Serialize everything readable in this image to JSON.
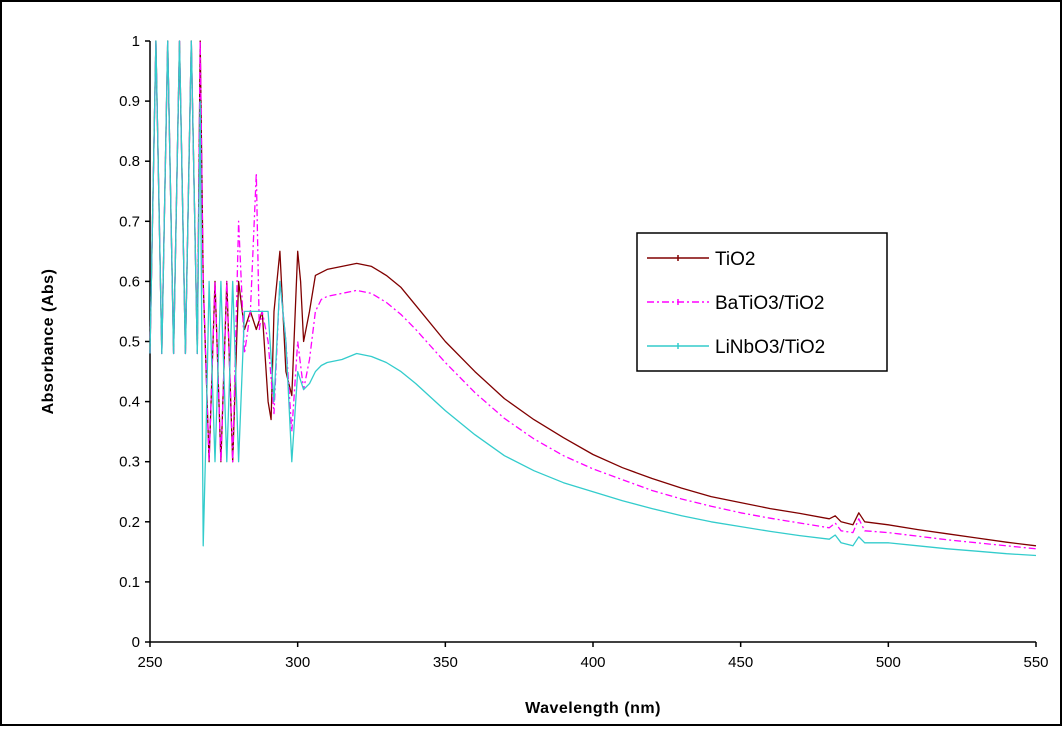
{
  "chart_data": {
    "type": "line",
    "title": "",
    "xlabel": "Wavelength (nm)",
    "ylabel": "Absorbance (Abs)",
    "xlim": [
      250,
      550
    ],
    "ylim": [
      0,
      1
    ],
    "xticks": [
      "250",
      "300",
      "350",
      "400",
      "450",
      "500",
      "550"
    ],
    "yticks": [
      "0",
      "0.1",
      "0.2",
      "0.3",
      "0.4",
      "0.5",
      "0.6",
      "0.7",
      "0.8",
      "0.9",
      "1"
    ],
    "grid": false,
    "legend_position": "right",
    "series": [
      {
        "name": "TiO2",
        "color": "#800000",
        "x": [
          250,
          252,
          254,
          256,
          258,
          260,
          262,
          264,
          266,
          267,
          268,
          270,
          272,
          274,
          276,
          278,
          280,
          282,
          284,
          286,
          288,
          290,
          291,
          292,
          294,
          296,
          298,
          300,
          301,
          302,
          304,
          306,
          308,
          310,
          315,
          320,
          325,
          330,
          335,
          340,
          350,
          360,
          370,
          380,
          390,
          400,
          410,
          420,
          430,
          440,
          450,
          460,
          470,
          480,
          482,
          484,
          488,
          490,
          492,
          500,
          510,
          520,
          530,
          540,
          550
        ],
        "y": [
          0.48,
          1.0,
          0.48,
          1.0,
          0.48,
          1.0,
          0.48,
          1.0,
          0.48,
          1.0,
          0.6,
          0.3,
          0.6,
          0.3,
          0.6,
          0.3,
          0.6,
          0.52,
          0.55,
          0.52,
          0.55,
          0.4,
          0.37,
          0.55,
          0.65,
          0.45,
          0.41,
          0.65,
          0.6,
          0.5,
          0.55,
          0.61,
          0.615,
          0.62,
          0.625,
          0.63,
          0.625,
          0.61,
          0.59,
          0.56,
          0.5,
          0.45,
          0.405,
          0.37,
          0.34,
          0.312,
          0.29,
          0.272,
          0.256,
          0.242,
          0.232,
          0.222,
          0.214,
          0.205,
          0.21,
          0.2,
          0.195,
          0.215,
          0.2,
          0.195,
          0.187,
          0.18,
          0.173,
          0.166,
          0.16
        ]
      },
      {
        "name": "BaTiO3/TiO2",
        "color": "#FF00FF",
        "x": [
          250,
          252,
          254,
          256,
          258,
          260,
          262,
          264,
          266,
          267,
          268,
          270,
          272,
          274,
          276,
          278,
          280,
          282,
          284,
          286,
          287,
          288,
          290,
          292,
          294,
          296,
          298,
          300,
          302,
          304,
          306,
          308,
          310,
          315,
          320,
          325,
          330,
          335,
          340,
          350,
          360,
          370,
          380,
          390,
          400,
          410,
          420,
          430,
          440,
          450,
          460,
          470,
          480,
          482,
          484,
          488,
          490,
          492,
          500,
          510,
          520,
          530,
          540,
          550
        ],
        "y": [
          0.48,
          1.0,
          0.48,
          1.0,
          0.48,
          1.0,
          0.48,
          1.0,
          0.48,
          1.0,
          0.6,
          0.3,
          0.6,
          0.3,
          0.6,
          0.3,
          0.7,
          0.48,
          0.55,
          0.78,
          0.52,
          0.55,
          0.5,
          0.38,
          0.6,
          0.5,
          0.35,
          0.5,
          0.42,
          0.47,
          0.55,
          0.57,
          0.575,
          0.58,
          0.585,
          0.58,
          0.565,
          0.545,
          0.52,
          0.465,
          0.415,
          0.372,
          0.338,
          0.31,
          0.288,
          0.27,
          0.252,
          0.238,
          0.226,
          0.215,
          0.206,
          0.198,
          0.19,
          0.198,
          0.185,
          0.182,
          0.205,
          0.185,
          0.182,
          0.176,
          0.17,
          0.165,
          0.16,
          0.155
        ]
      },
      {
        "name": "LiNbO3/TiO2",
        "color": "#33CCCC",
        "x": [
          250,
          252,
          254,
          256,
          258,
          260,
          262,
          264,
          266,
          267,
          268,
          269,
          270,
          272,
          274,
          276,
          278,
          280,
          282,
          284,
          286,
          288,
          290,
          292,
          294,
          296,
          298,
          300,
          302,
          304,
          306,
          308,
          310,
          315,
          320,
          325,
          330,
          335,
          340,
          350,
          360,
          370,
          380,
          390,
          400,
          410,
          420,
          430,
          440,
          450,
          460,
          470,
          480,
          482,
          484,
          488,
          490,
          492,
          500,
          510,
          520,
          530,
          540,
          550
        ],
        "y": [
          0.48,
          1.0,
          0.48,
          1.0,
          0.48,
          1.0,
          0.48,
          1.0,
          0.48,
          0.9,
          0.16,
          0.35,
          0.6,
          0.3,
          0.6,
          0.3,
          0.6,
          0.3,
          0.55,
          0.55,
          0.55,
          0.55,
          0.55,
          0.4,
          0.6,
          0.5,
          0.3,
          0.45,
          0.42,
          0.43,
          0.45,
          0.46,
          0.465,
          0.47,
          0.48,
          0.475,
          0.465,
          0.45,
          0.43,
          0.385,
          0.345,
          0.31,
          0.285,
          0.265,
          0.25,
          0.235,
          0.222,
          0.21,
          0.2,
          0.192,
          0.184,
          0.177,
          0.171,
          0.178,
          0.165,
          0.16,
          0.175,
          0.165,
          0.165,
          0.16,
          0.155,
          0.151,
          0.147,
          0.144
        ]
      }
    ]
  }
}
